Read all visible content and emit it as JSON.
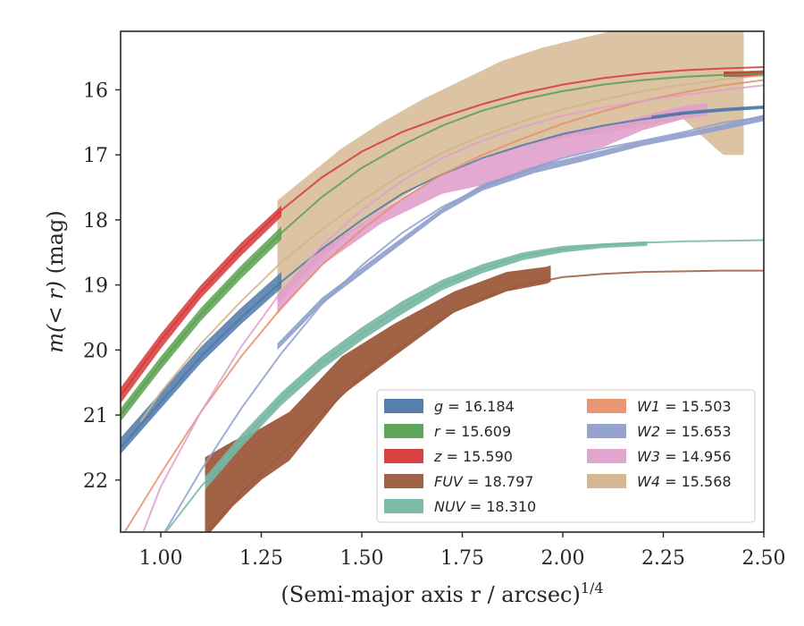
{
  "chart_data": {
    "type": "line",
    "xlabel": "(Semi-major axis r / arcsec)",
    "xlabel_exponent": "1/4",
    "ylabel_prefix": "m(< r)",
    "ylabel_unit": " (mag)",
    "xlim": [
      0.9,
      2.5
    ],
    "ylim": [
      22.8,
      15.1
    ],
    "y_inverted": true,
    "xticks": [
      1.0,
      1.25,
      1.5,
      1.75,
      2.0,
      2.25,
      2.5
    ],
    "xtick_labels": [
      "1.00",
      "1.25",
      "1.50",
      "1.75",
      "2.00",
      "2.25",
      "2.50"
    ],
    "yticks": [
      16,
      17,
      18,
      19,
      20,
      21,
      22
    ],
    "ytick_labels": [
      "16",
      "17",
      "18",
      "19",
      "20",
      "21",
      "22"
    ],
    "legend_position": "lower-right",
    "grid": false,
    "series": [
      {
        "name": "g",
        "value": "16.184",
        "color": "#4c78a8",
        "model": [
          [
            0.9,
            21.5
          ],
          [
            1.0,
            20.8
          ],
          [
            1.1,
            20.1
          ],
          [
            1.2,
            19.5
          ],
          [
            1.3,
            18.95
          ],
          [
            1.4,
            18.45
          ],
          [
            1.5,
            18.0
          ],
          [
            1.6,
            17.6
          ],
          [
            1.7,
            17.3
          ],
          [
            1.8,
            17.05
          ],
          [
            1.9,
            16.85
          ],
          [
            2.0,
            16.68
          ],
          [
            2.1,
            16.55
          ],
          [
            2.2,
            16.45
          ],
          [
            2.3,
            16.37
          ],
          [
            2.4,
            16.32
          ],
          [
            2.5,
            16.28
          ]
        ],
        "band": {
          "x": [
            0.9,
            1.0,
            1.1,
            1.2,
            1.3
          ],
          "lo": [
            21.35,
            20.65,
            19.95,
            19.35,
            18.8
          ],
          "hi": [
            21.6,
            20.9,
            20.2,
            19.6,
            19.05
          ]
        },
        "obs": {
          "x": [
            2.22,
            2.3,
            2.4,
            2.5
          ],
          "lo": [
            16.4,
            16.33,
            16.28,
            16.24
          ],
          "hi": [
            16.45,
            16.38,
            16.32,
            16.28
          ]
        }
      },
      {
        "name": "r",
        "value": "15.609",
        "color": "#59a14f",
        "model": [
          [
            0.9,
            21.0
          ],
          [
            1.0,
            20.2
          ],
          [
            1.1,
            19.45
          ],
          [
            1.2,
            18.8
          ],
          [
            1.3,
            18.2
          ],
          [
            1.4,
            17.65
          ],
          [
            1.5,
            17.2
          ],
          [
            1.6,
            16.85
          ],
          [
            1.7,
            16.55
          ],
          [
            1.8,
            16.32
          ],
          [
            1.9,
            16.15
          ],
          [
            2.0,
            16.02
          ],
          [
            2.1,
            15.92
          ],
          [
            2.2,
            15.85
          ],
          [
            2.3,
            15.8
          ],
          [
            2.4,
            15.77
          ],
          [
            2.5,
            15.75
          ]
        ],
        "band": {
          "x": [
            0.9,
            1.0,
            1.1,
            1.2,
            1.3
          ],
          "lo": [
            20.9,
            20.1,
            19.35,
            18.7,
            18.1
          ],
          "hi": [
            21.1,
            20.3,
            19.55,
            18.9,
            18.3
          ]
        },
        "obs": {
          "x": [
            2.4,
            2.45,
            2.5
          ],
          "lo": [
            15.72,
            15.71,
            15.7
          ],
          "hi": [
            15.78,
            15.77,
            15.76
          ]
        }
      },
      {
        "name": "z",
        "value": "15.590",
        "color": "#d63838",
        "model": [
          [
            0.9,
            20.7
          ],
          [
            1.0,
            19.85
          ],
          [
            1.1,
            19.1
          ],
          [
            1.2,
            18.45
          ],
          [
            1.3,
            17.85
          ],
          [
            1.4,
            17.35
          ],
          [
            1.5,
            16.95
          ],
          [
            1.6,
            16.65
          ],
          [
            1.7,
            16.42
          ],
          [
            1.8,
            16.22
          ],
          [
            1.9,
            16.05
          ],
          [
            2.0,
            15.92
          ],
          [
            2.1,
            15.82
          ],
          [
            2.2,
            15.75
          ],
          [
            2.3,
            15.7
          ],
          [
            2.4,
            15.67
          ],
          [
            2.5,
            15.65
          ]
        ],
        "band": {
          "x": [
            0.9,
            1.0,
            1.1,
            1.2,
            1.3
          ],
          "lo": [
            20.58,
            19.75,
            19.0,
            18.35,
            17.78
          ],
          "hi": [
            20.82,
            19.98,
            19.2,
            18.55,
            17.95
          ]
        },
        "obs": {
          "x": [
            2.4,
            2.45,
            2.5
          ],
          "lo": [
            15.72,
            15.72,
            15.71
          ],
          "hi": [
            15.8,
            15.8,
            15.79
          ]
        }
      },
      {
        "name": "FUV",
        "value": "18.797",
        "color": "#9c5a3c",
        "model": [
          [
            1.1,
            22.9
          ],
          [
            1.2,
            22.2
          ],
          [
            1.3,
            21.6
          ],
          [
            1.4,
            21.0
          ],
          [
            1.5,
            20.4
          ],
          [
            1.6,
            19.95
          ],
          [
            1.7,
            19.5
          ],
          [
            1.8,
            19.2
          ],
          [
            1.9,
            19.0
          ],
          [
            2.0,
            18.88
          ],
          [
            2.1,
            18.83
          ],
          [
            2.2,
            18.8
          ],
          [
            2.3,
            18.79
          ],
          [
            2.4,
            18.78
          ],
          [
            2.5,
            18.78
          ]
        ],
        "obs": {
          "x": [
            1.11,
            1.18,
            1.25,
            1.32,
            1.45,
            1.58,
            1.73,
            1.86,
            1.96,
            1.97
          ],
          "lo": [
            21.65,
            21.4,
            21.2,
            20.95,
            20.1,
            19.6,
            19.1,
            18.8,
            18.72,
            18.7
          ],
          "hi": [
            22.9,
            22.4,
            22.0,
            21.7,
            20.7,
            20.1,
            19.42,
            19.1,
            18.98,
            18.95
          ]
        }
      },
      {
        "name": "NUV",
        "value": "18.310",
        "color": "#76b7a4",
        "model": [
          [
            1.0,
            22.9
          ],
          [
            1.1,
            22.1
          ],
          [
            1.2,
            21.4
          ],
          [
            1.3,
            20.75
          ],
          [
            1.4,
            20.2
          ],
          [
            1.5,
            19.75
          ],
          [
            1.6,
            19.35
          ],
          [
            1.7,
            19.0
          ],
          [
            1.8,
            18.75
          ],
          [
            1.9,
            18.55
          ],
          [
            2.0,
            18.45
          ],
          [
            2.1,
            18.38
          ],
          [
            2.2,
            18.35
          ],
          [
            2.3,
            18.33
          ],
          [
            2.4,
            18.32
          ],
          [
            2.5,
            18.31
          ]
        ],
        "obs": {
          "x": [
            1.11,
            1.2,
            1.3,
            1.4,
            1.5,
            1.6,
            1.7,
            1.8,
            1.9,
            2.0,
            2.1,
            2.21
          ],
          "lo": [
            21.95,
            21.3,
            20.65,
            20.1,
            19.65,
            19.25,
            18.92,
            18.68,
            18.5,
            18.4,
            18.36,
            18.33
          ],
          "hi": [
            22.15,
            21.5,
            20.85,
            20.3,
            19.85,
            19.45,
            19.08,
            18.82,
            18.62,
            18.5,
            18.43,
            18.4
          ]
        }
      },
      {
        "name": "W1",
        "value": "15.503",
        "color": "#e8906a",
        "model": [
          [
            0.9,
            22.9
          ],
          [
            1.0,
            21.9
          ],
          [
            1.1,
            20.95
          ],
          [
            1.2,
            20.1
          ],
          [
            1.3,
            19.35
          ],
          [
            1.4,
            18.7
          ],
          [
            1.5,
            18.15
          ],
          [
            1.6,
            17.68
          ],
          [
            1.7,
            17.3
          ],
          [
            1.8,
            17.0
          ],
          [
            1.9,
            16.75
          ],
          [
            2.0,
            16.52
          ],
          [
            2.1,
            16.33
          ],
          [
            2.2,
            16.17
          ],
          [
            2.3,
            16.04
          ],
          [
            2.4,
            15.93
          ],
          [
            2.5,
            15.85
          ]
        ]
      },
      {
        "name": "W2",
        "value": "15.653",
        "color": "#8f9fcc",
        "model": [
          [
            1.0,
            22.9
          ],
          [
            1.1,
            21.85
          ],
          [
            1.2,
            20.9
          ],
          [
            1.3,
            20.05
          ],
          [
            1.4,
            19.3
          ],
          [
            1.5,
            18.7
          ],
          [
            1.6,
            18.2
          ],
          [
            1.7,
            17.8
          ],
          [
            1.8,
            17.5
          ],
          [
            1.9,
            17.25
          ],
          [
            2.0,
            17.05
          ],
          [
            2.1,
            16.9
          ],
          [
            2.2,
            16.78
          ],
          [
            2.3,
            16.65
          ],
          [
            2.4,
            16.5
          ],
          [
            2.5,
            16.42
          ]
        ],
        "obs": {
          "x": [
            1.29,
            1.4,
            1.55,
            1.7,
            1.8,
            1.93,
            2.05,
            2.2,
            2.35,
            2.5
          ],
          "lo": [
            19.9,
            19.2,
            18.5,
            17.82,
            17.45,
            17.18,
            17.0,
            16.78,
            16.6,
            16.38
          ],
          "hi": [
            20.0,
            19.3,
            18.6,
            17.9,
            17.55,
            17.28,
            17.1,
            16.86,
            16.68,
            16.48
          ]
        }
      },
      {
        "name": "W3",
        "value": "14.956",
        "color": "#e0a0cc",
        "model": [
          [
            0.95,
            22.9
          ],
          [
            1.0,
            22.1
          ],
          [
            1.1,
            20.95
          ],
          [
            1.2,
            19.95
          ],
          [
            1.3,
            19.1
          ],
          [
            1.4,
            18.4
          ],
          [
            1.5,
            17.85
          ],
          [
            1.6,
            17.4
          ],
          [
            1.7,
            17.05
          ],
          [
            1.8,
            16.78
          ],
          [
            1.9,
            16.57
          ],
          [
            2.0,
            16.4
          ],
          [
            2.1,
            16.27
          ],
          [
            2.2,
            16.17
          ],
          [
            2.3,
            16.08
          ],
          [
            2.4,
            16.0
          ],
          [
            2.5,
            15.93
          ]
        ],
        "obs": {
          "x": [
            1.29,
            1.4,
            1.55,
            1.7,
            1.85,
            2.0,
            2.1,
            2.2,
            2.3,
            2.36
          ],
          "lo": [
            19.15,
            18.45,
            17.85,
            17.3,
            16.95,
            16.65,
            16.55,
            16.4,
            16.25,
            16.2
          ],
          "hi": [
            19.45,
            18.7,
            18.05,
            17.6,
            17.4,
            17.05,
            16.88,
            16.62,
            16.45,
            16.4
          ]
        }
      },
      {
        "name": "W4",
        "value": "15.568",
        "color": "#d2b48c",
        "model": [
          [
            0.95,
            21.1
          ],
          [
            1.0,
            20.65
          ],
          [
            1.1,
            19.9
          ],
          [
            1.2,
            19.25
          ],
          [
            1.3,
            18.65
          ],
          [
            1.4,
            18.15
          ],
          [
            1.5,
            17.7
          ],
          [
            1.6,
            17.3
          ],
          [
            1.7,
            16.97
          ],
          [
            1.8,
            16.7
          ],
          [
            1.9,
            16.48
          ],
          [
            2.0,
            16.3
          ],
          [
            2.1,
            16.15
          ],
          [
            2.2,
            16.02
          ],
          [
            2.3,
            15.92
          ],
          [
            2.4,
            15.84
          ],
          [
            2.5,
            15.78
          ]
        ],
        "obs": {
          "x": [
            1.29,
            1.35,
            1.45,
            1.55,
            1.65,
            1.75,
            1.85,
            1.95,
            2.05,
            2.12,
            2.2,
            2.3,
            2.38,
            2.4,
            2.45
          ],
          "lo": [
            17.7,
            17.4,
            16.9,
            16.5,
            16.15,
            15.85,
            15.55,
            15.35,
            15.2,
            15.1,
            15.0,
            15.0,
            15.0,
            15.0,
            15.0
          ],
          "hi": [
            19.3,
            18.9,
            18.3,
            17.85,
            17.45,
            17.15,
            16.95,
            16.8,
            16.7,
            16.65,
            16.55,
            16.45,
            16.9,
            17.0,
            17.0
          ]
        }
      }
    ]
  }
}
